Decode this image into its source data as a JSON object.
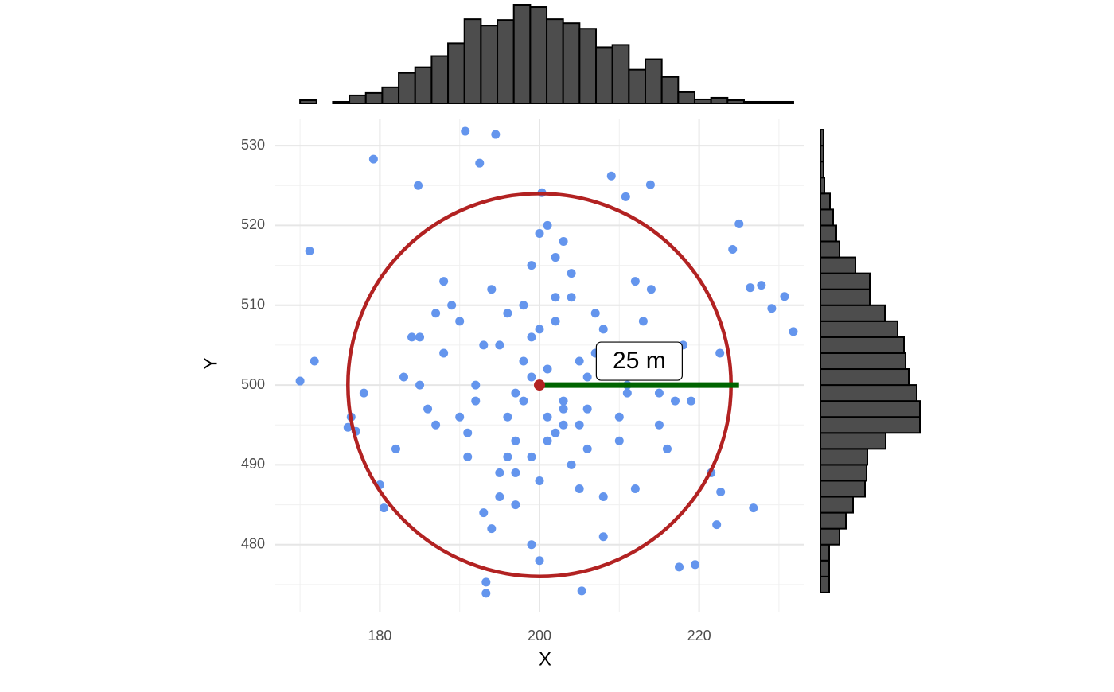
{
  "chart_data": {
    "type": "scatter",
    "x_label": "X",
    "y_label": "Y",
    "xlim": [
      166.8,
      233.1
    ],
    "ylim": [
      471.5,
      533.3
    ],
    "xticks": [
      180,
      200,
      220
    ],
    "yticks": [
      480,
      490,
      500,
      510,
      520,
      530
    ],
    "xminor": [
      170,
      190,
      210,
      230
    ],
    "yminor": [
      475,
      485,
      495,
      505,
      515,
      525
    ],
    "grid": true,
    "point_color": "#6495ed",
    "x": [
      170,
      171.2,
      171.8,
      179.2,
      190.7,
      192.5,
      194.5,
      184.8,
      225,
      231.8,
      230.7,
      229.1,
      227.8,
      226.4,
      226.8,
      222.7,
      222.2,
      221.5,
      219.5,
      217.5,
      205.3,
      193.3,
      193.3,
      176,
      176.4,
      177,
      180,
      180.5,
      224.2,
      213.9,
      209,
      210.8,
      200.3,
      178,
      222.6,
      195,
      203,
      198,
      205,
      201,
      197,
      208,
      192,
      199,
      204,
      188,
      211,
      196,
      202,
      206,
      194,
      200,
      213,
      186,
      207,
      199,
      191,
      203,
      210,
      197,
      185,
      215,
      202,
      195,
      209,
      201,
      198,
      189,
      212,
      204,
      183,
      218,
      193,
      206,
      200,
      196,
      214,
      187,
      205,
      199,
      202,
      190,
      208,
      197,
      216,
      184,
      203,
      194,
      211,
      200,
      188,
      207,
      199,
      192,
      213,
      201,
      196,
      205,
      182,
      219,
      198,
      204,
      190,
      210,
      195,
      202,
      187,
      215,
      200,
      193,
      206,
      197,
      212,
      185,
      203,
      199,
      208,
      191,
      217,
      201
    ],
    "y": [
      500.5,
      516.8,
      503,
      528.3,
      531.8,
      527.8,
      531.4,
      525,
      520.2,
      506.7,
      511.1,
      509.6,
      512.5,
      512.2,
      484.6,
      486.6,
      482.5,
      489,
      477.5,
      477.2,
      474.2,
      473.9,
      475.3,
      494.7,
      496,
      494.2,
      487.5,
      484.6,
      517,
      525.1,
      526.2,
      523.6,
      524.1,
      499,
      504,
      505,
      498,
      510,
      495,
      502,
      493,
      507,
      500,
      515,
      490,
      504,
      499,
      496,
      508,
      492,
      512,
      488,
      503,
      497,
      509,
      501,
      494,
      518,
      496,
      485,
      506,
      499,
      511,
      489,
      502,
      493,
      498,
      510,
      487,
      514,
      501,
      505,
      484,
      497,
      507,
      491,
      512,
      495,
      503,
      480,
      494,
      508,
      486,
      499,
      492,
      506,
      497,
      482,
      500,
      519,
      513,
      504,
      491,
      498,
      508,
      496,
      509,
      487,
      492,
      498,
      503,
      511,
      496,
      493,
      486,
      516,
      509,
      495,
      478,
      505,
      501,
      489,
      513,
      500,
      495,
      506,
      481,
      491,
      498,
      520
    ],
    "circle": {
      "center_x": 200,
      "center_y": 500,
      "radius": 24,
      "color": "#b22222"
    },
    "segment": {
      "x_start": 200,
      "x_end": 225,
      "y": 500,
      "color": "#006400",
      "label": "25 m"
    },
    "top_histogram": {
      "color": "#4d4d4d",
      "bins": [
        170,
        172.06,
        174.12,
        176.18,
        178.24,
        180.3,
        182.36,
        184.42,
        186.48,
        188.54,
        190.6,
        192.66,
        194.72,
        196.78,
        198.84,
        200.9,
        202.96,
        205.02,
        207.08,
        209.14,
        211.2,
        213.26,
        215.32,
        217.38,
        219.44,
        221.5,
        223.56,
        225.62,
        227.68,
        229.74,
        231.8
      ],
      "counts": [
        4,
        0,
        2,
        10,
        13,
        20,
        38,
        45,
        59,
        75,
        105,
        97,
        104,
        123,
        120,
        105,
        100,
        93,
        70,
        73,
        42,
        55,
        33,
        14,
        5,
        7,
        4,
        2,
        2,
        2
      ]
    },
    "right_histogram": {
      "color": "#4d4d4d",
      "bins": [
        474,
        476,
        478,
        480,
        482,
        484,
        486,
        488,
        490,
        492,
        494,
        496,
        498,
        500,
        502,
        504,
        506,
        508,
        510,
        512,
        514,
        516,
        518,
        520,
        522,
        524,
        526,
        528,
        530,
        532
      ],
      "counts": [
        11,
        11,
        11,
        24,
        32,
        41,
        56,
        58,
        59,
        82,
        125,
        125,
        121,
        111,
        107,
        105,
        97,
        81,
        62,
        62,
        44,
        24,
        20,
        16,
        12,
        5,
        4,
        4,
        4
      ]
    }
  }
}
